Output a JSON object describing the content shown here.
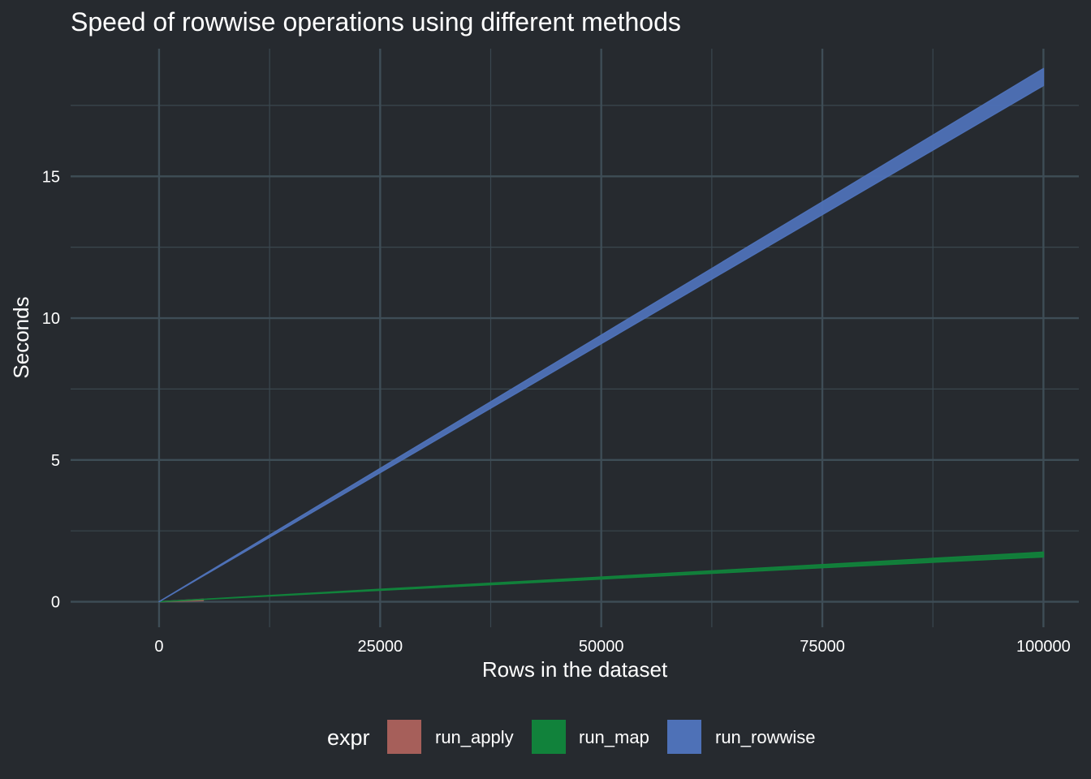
{
  "chart_data": {
    "type": "area",
    "title": "Speed of rowwise operations using different methods",
    "xlabel": "Rows in the dataset",
    "ylabel": "Seconds",
    "xlim": [
      -10000,
      104000
    ],
    "ylim": [
      -0.9,
      19.5
    ],
    "x_ticks": [
      0,
      25000,
      50000,
      75000,
      100000
    ],
    "x_tick_labels": [
      "0",
      "25000",
      "50000",
      "75000",
      "100000"
    ],
    "y_ticks": [
      0,
      5,
      10,
      15
    ],
    "y_tick_labels": [
      "0",
      "5",
      "10",
      "15"
    ],
    "x_minor_ticks": [
      12500,
      37500,
      62500,
      87500
    ],
    "y_minor_ticks": [
      2.5,
      7.5,
      12.5,
      17.5
    ],
    "grid": true,
    "legend": {
      "title": "expr",
      "position": "bottom"
    },
    "series": [
      {
        "name": "run_apply",
        "color": "#A65F5A",
        "x": [
          0,
          5000
        ],
        "lower": [
          0,
          0.04
        ],
        "upper": [
          0,
          0.09
        ]
      },
      {
        "name": "run_map",
        "color": "#11823B",
        "x": [
          0,
          25000,
          50000,
          75000,
          100000
        ],
        "lower": [
          0,
          0.4,
          0.8,
          1.2,
          1.58
        ],
        "upper": [
          0,
          0.44,
          0.87,
          1.31,
          1.75
        ]
      },
      {
        "name": "run_rowwise",
        "color": "#4E71B7",
        "x": [
          0,
          25000,
          50000,
          75000,
          100000
        ],
        "lower": [
          0,
          4.55,
          9.1,
          13.65,
          18.2
        ],
        "upper": [
          0,
          4.7,
          9.4,
          14.1,
          18.8
        ]
      }
    ]
  }
}
